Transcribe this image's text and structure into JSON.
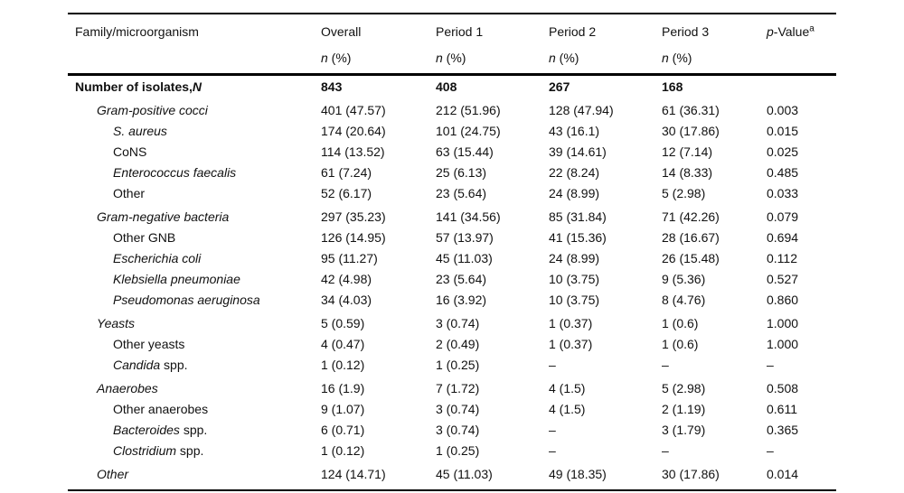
{
  "page": {
    "background": "#ffffff",
    "text_color": "#111111",
    "rule_color": "#000000"
  },
  "table": {
    "header": {
      "family_col": "Family/microorganism",
      "period_cols": [
        "Overall",
        "Period 1",
        "Period 2",
        "Period 3"
      ],
      "pvalue": {
        "italic": "p",
        "rest": "-Value",
        "superscript": "a"
      },
      "subheader": {
        "italic": "n",
        "rest": " (%)"
      }
    },
    "rows": [
      {
        "indent": 0,
        "bold": true,
        "group": false,
        "parts": [
          {
            "t": "Number of isolates,"
          },
          {
            "t": "N",
            "i": true
          }
        ],
        "values": [
          "843",
          "408",
          "267",
          "168",
          ""
        ]
      },
      {
        "indent": 1,
        "bold": false,
        "group": true,
        "parts": [
          {
            "t": "Gram-positive cocci",
            "i": true
          }
        ],
        "values": [
          "401 (47.57)",
          "212 (51.96)",
          "128 (47.94)",
          "61 (36.31)",
          "0.003"
        ]
      },
      {
        "indent": 2,
        "bold": false,
        "group": false,
        "parts": [
          {
            "t": "S. aureus",
            "i": true
          }
        ],
        "values": [
          "174 (20.64)",
          "101 (24.75)",
          "43 (16.1)",
          "30 (17.86)",
          "0.015"
        ]
      },
      {
        "indent": 2,
        "bold": false,
        "group": false,
        "parts": [
          {
            "t": "CoNS"
          }
        ],
        "values": [
          "114 (13.52)",
          "63 (15.44)",
          "39 (14.61)",
          "12 (7.14)",
          "0.025"
        ]
      },
      {
        "indent": 2,
        "bold": false,
        "group": false,
        "parts": [
          {
            "t": "Enterococcus faecalis",
            "i": true
          }
        ],
        "values": [
          "61 (7.24)",
          "25 (6.13)",
          "22 (8.24)",
          "14 (8.33)",
          "0.485"
        ]
      },
      {
        "indent": 2,
        "bold": false,
        "group": false,
        "parts": [
          {
            "t": "Other"
          }
        ],
        "values": [
          "52 (6.17)",
          "23 (5.64)",
          "24 (8.99)",
          "5 (2.98)",
          "0.033"
        ]
      },
      {
        "indent": 1,
        "bold": false,
        "group": true,
        "parts": [
          {
            "t": "Gram-negative bacteria",
            "i": true
          }
        ],
        "values": [
          "297 (35.23)",
          "141 (34.56)",
          "85 (31.84)",
          "71 (42.26)",
          "0.079"
        ]
      },
      {
        "indent": 2,
        "bold": false,
        "group": false,
        "parts": [
          {
            "t": "Other GNB"
          }
        ],
        "values": [
          "126 (14.95)",
          "57 (13.97)",
          "41 (15.36)",
          "28 (16.67)",
          "0.694"
        ]
      },
      {
        "indent": 2,
        "bold": false,
        "group": false,
        "parts": [
          {
            "t": "Escherichia coli",
            "i": true
          }
        ],
        "values": [
          "95 (11.27)",
          "45 (11.03)",
          "24 (8.99)",
          "26 (15.48)",
          "0.112"
        ]
      },
      {
        "indent": 2,
        "bold": false,
        "group": false,
        "parts": [
          {
            "t": "Klebsiella pneumoniae",
            "i": true
          }
        ],
        "values": [
          "42 (4.98)",
          "23 (5.64)",
          "10 (3.75)",
          "9 (5.36)",
          "0.527"
        ]
      },
      {
        "indent": 2,
        "bold": false,
        "group": false,
        "parts": [
          {
            "t": "Pseudomonas aeruginosa",
            "i": true
          }
        ],
        "values": [
          "34 (4.03)",
          "16 (3.92)",
          "10 (3.75)",
          "8 (4.76)",
          "0.860"
        ]
      },
      {
        "indent": 1,
        "bold": false,
        "group": true,
        "parts": [
          {
            "t": "Yeasts",
            "i": true
          }
        ],
        "values": [
          "5 (0.59)",
          "3 (0.74)",
          "1 (0.37)",
          "1 (0.6)",
          "1.000"
        ]
      },
      {
        "indent": 2,
        "bold": false,
        "group": false,
        "parts": [
          {
            "t": "Other yeasts"
          }
        ],
        "values": [
          "4 (0.47)",
          "2 (0.49)",
          "1 (0.37)",
          "1 (0.6)",
          "1.000"
        ]
      },
      {
        "indent": 2,
        "bold": false,
        "group": false,
        "parts": [
          {
            "t": "Candida",
            "i": true
          },
          {
            "t": " spp."
          }
        ],
        "values": [
          "1 (0.12)",
          "1 (0.25)",
          "–",
          "–",
          "–"
        ]
      },
      {
        "indent": 1,
        "bold": false,
        "group": true,
        "parts": [
          {
            "t": "Anaerobes",
            "i": true
          }
        ],
        "values": [
          "16 (1.9)",
          "7 (1.72)",
          "4 (1.5)",
          "5 (2.98)",
          "0.508"
        ]
      },
      {
        "indent": 2,
        "bold": false,
        "group": false,
        "parts": [
          {
            "t": "Other anaerobes"
          }
        ],
        "values": [
          "9 (1.07)",
          "3 (0.74)",
          "4 (1.5)",
          "2 (1.19)",
          "0.611"
        ]
      },
      {
        "indent": 2,
        "bold": false,
        "group": false,
        "parts": [
          {
            "t": "Bacteroides",
            "i": true
          },
          {
            "t": " spp."
          }
        ],
        "values": [
          "6 (0.71)",
          "3 (0.74)",
          "–",
          "3 (1.79)",
          "0.365"
        ]
      },
      {
        "indent": 2,
        "bold": false,
        "group": false,
        "parts": [
          {
            "t": "Clostridium",
            "i": true
          },
          {
            "t": " spp."
          }
        ],
        "values": [
          "1 (0.12)",
          "1 (0.25)",
          "–",
          "–",
          "–"
        ]
      },
      {
        "indent": 1,
        "bold": false,
        "group": true,
        "parts": [
          {
            "t": "Other",
            "i": true
          }
        ],
        "values": [
          "124 (14.71)",
          "45 (11.03)",
          "49 (18.35)",
          "30 (17.86)",
          "0.014"
        ]
      }
    ],
    "value_col_names": [
      "cell-overall",
      "cell-period1",
      "cell-period2",
      "cell-period3",
      "cell-pvalue"
    ]
  }
}
